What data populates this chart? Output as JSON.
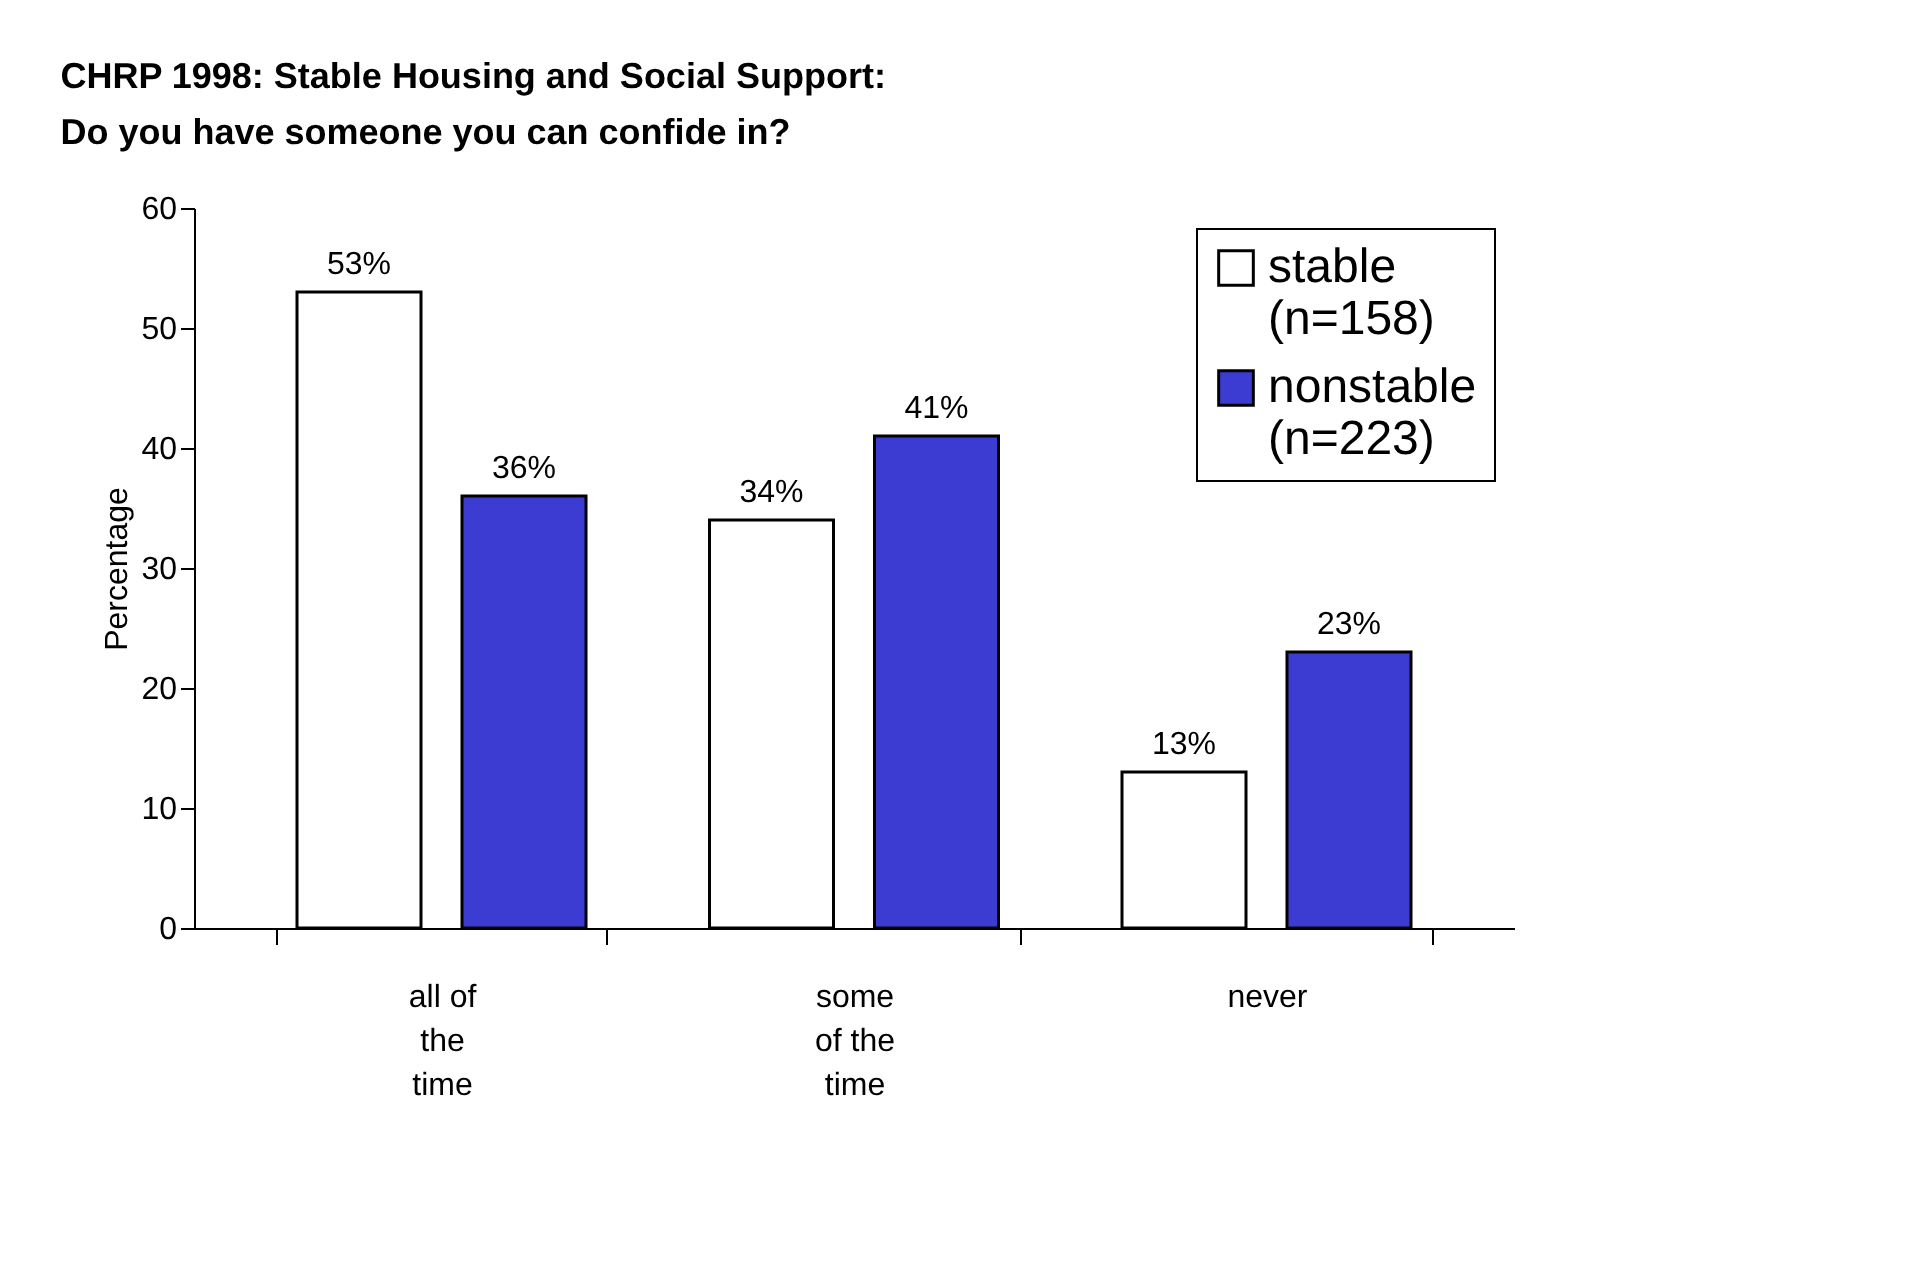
{
  "chart_data": {
    "type": "bar",
    "title": "CHRP 1998:  Stable Housing and Social Support:\nDo you have someone you can confide in?",
    "ylabel": "Percentage",
    "categories": [
      "all of\nthe\ntime",
      "some\nof the\ntime",
      "never"
    ],
    "series": [
      {
        "name": "stable (n=158)",
        "color": "#ffffff",
        "values": [
          53,
          34,
          13
        ],
        "value_labels": [
          "53%",
          "34%",
          "13%"
        ]
      },
      {
        "name": "nonstable (n=223)",
        "color": "#3c3cd2",
        "values": [
          36,
          41,
          23
        ],
        "value_labels": [
          "36%",
          "41%",
          "23%"
        ]
      }
    ],
    "ylim": [
      0,
      60
    ],
    "yticks": [
      0,
      10,
      20,
      30,
      40,
      50,
      60
    ],
    "grid": false,
    "legend": "top right"
  }
}
